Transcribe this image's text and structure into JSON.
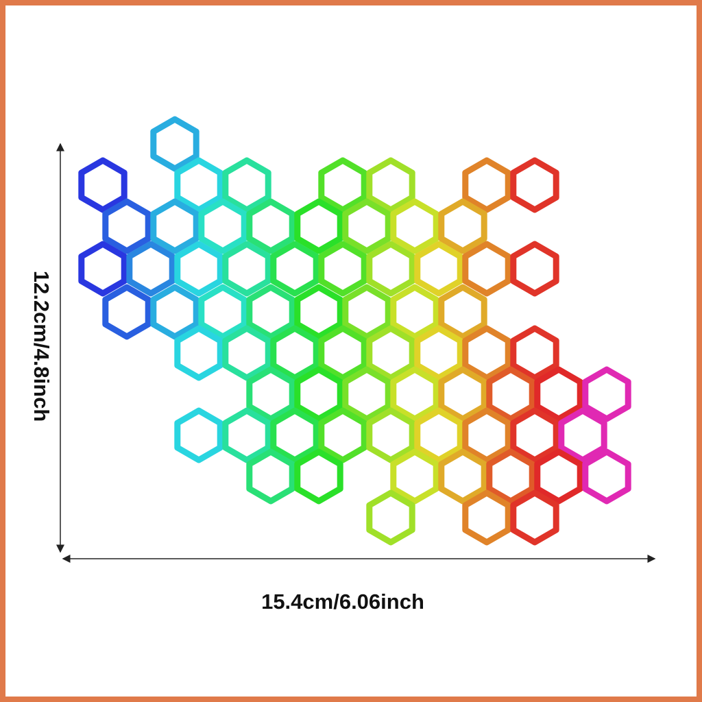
{
  "dimensions": {
    "height": "12.2cm/4.8inch",
    "width": "15.4cm/6.06inch"
  }
}
